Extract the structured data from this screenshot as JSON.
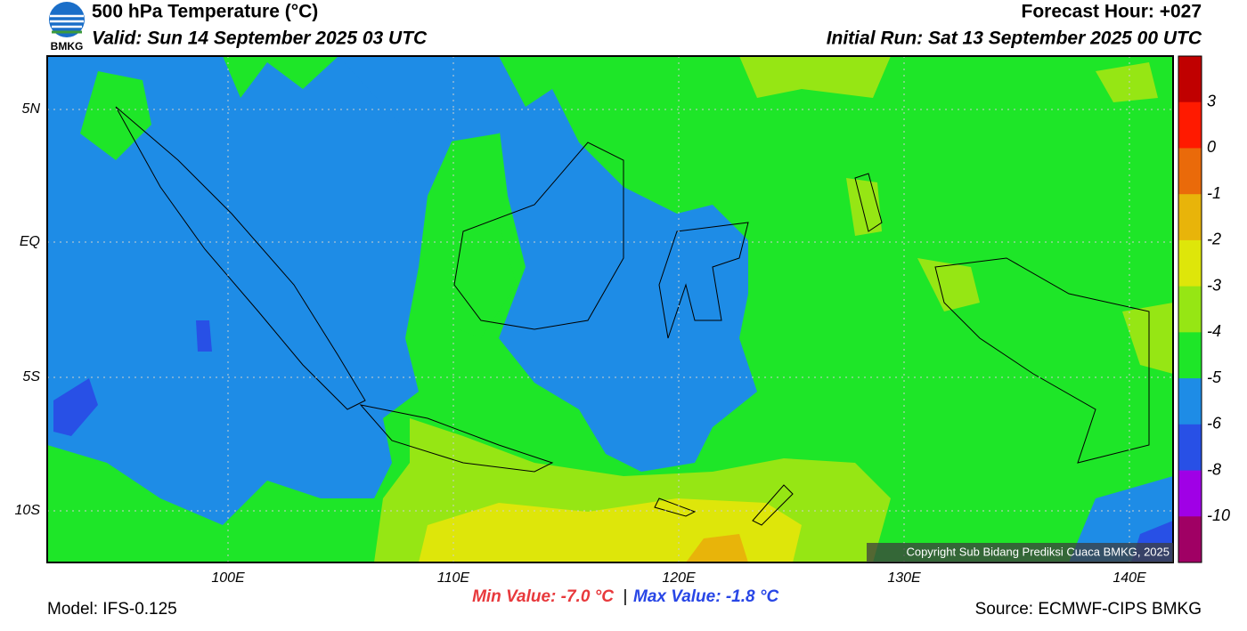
{
  "header": {
    "logo_text": "BMKG",
    "title": "500 hPa Temperature (°C)",
    "valid": "Valid: Sun 14 September 2025 03 UTC",
    "forecast_hour": "Forecast Hour: +027",
    "initial_run": "Initial Run: Sat 13 September 2025 00 UTC"
  },
  "map": {
    "lat_labels": [
      "5N",
      "EQ",
      "5S",
      "10S"
    ],
    "lon_labels": [
      "100E",
      "110E",
      "120E",
      "130E",
      "140E"
    ],
    "copyright": "Copyright Sub Bidang Prediksi Cuaca BMKG, 2025"
  },
  "colorbar": {
    "labels": [
      "3",
      "0",
      "-1",
      "-2",
      "-3",
      "-4",
      "-5",
      "-6",
      "-8",
      "-10"
    ],
    "colors": [
      "#c00000",
      "#ff1a00",
      "#ea6a0a",
      "#e8b40a",
      "#dee60a",
      "#96e614",
      "#1ee628",
      "#1e8ce6",
      "#2850e6",
      "#a000e6",
      "#a00064"
    ]
  },
  "footer": {
    "min_value": "Min Value: -7.0 °C",
    "separator": "|",
    "max_value": "Max Value: -1.8 °C",
    "model": "Model: IFS-0.125",
    "source": "Source: ECMWF-CIPS BMKG"
  }
}
